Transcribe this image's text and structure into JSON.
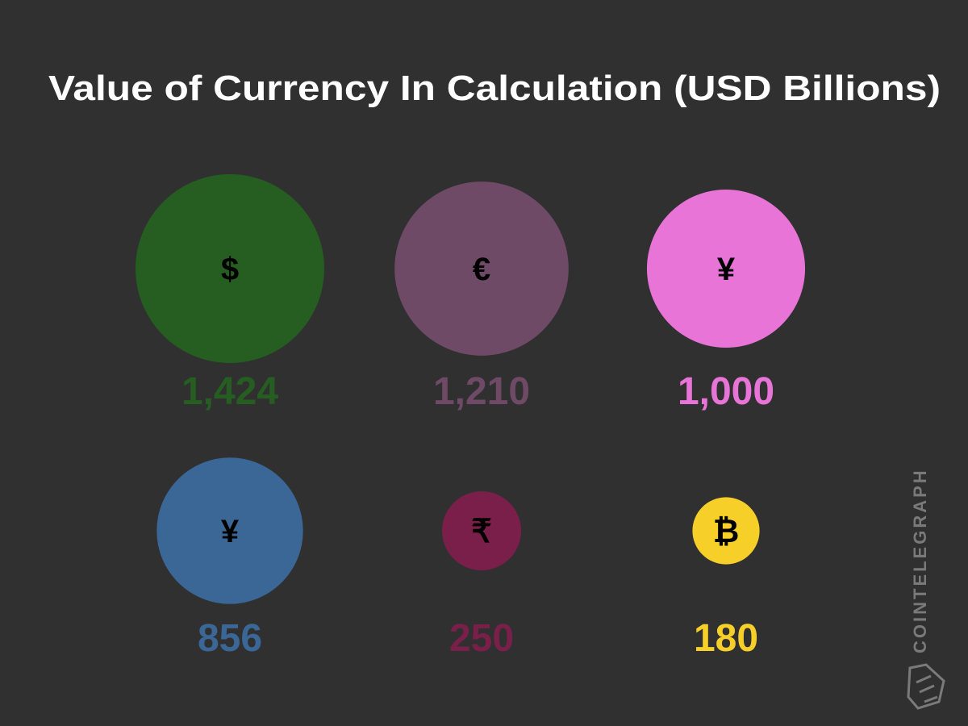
{
  "chart_data": {
    "type": "bubble",
    "title": "Value of Currency In Calculation (USD Billions)",
    "categories": [
      "$",
      "€",
      "¥",
      "¥",
      "₹",
      "₿"
    ],
    "values": [
      1424,
      1210,
      1000,
      856,
      250,
      180
    ],
    "value_labels": [
      "1,424",
      "1,210",
      "1,000",
      "856",
      "250",
      "180"
    ],
    "colors": [
      "#265e22",
      "#6e4a66",
      "#e874d8",
      "#3a6796",
      "#7a1f4a",
      "#f7cf29"
    ]
  },
  "watermark": "COINTELEGRAPH"
}
